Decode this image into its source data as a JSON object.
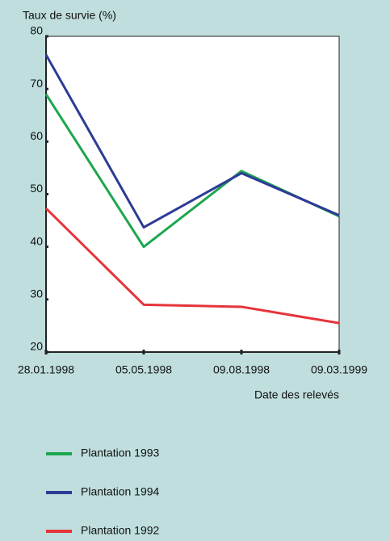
{
  "chart_data": {
    "type": "line",
    "title": "Taux de survie (%)",
    "x_label": "Date des relevés",
    "categories": [
      "28.01.1998",
      "05.05.1998",
      "09.08.1998",
      "09.03.1999"
    ],
    "series": [
      {
        "name": "Plantation 1993",
        "color": "#1ea64f",
        "values": [
          69,
          40,
          54.4,
          45.8
        ]
      },
      {
        "name": "Plantation 1994",
        "color": "#2d3b97",
        "values": [
          76.5,
          43.7,
          54,
          46
        ]
      },
      {
        "name": "Plantation 1992",
        "color": "#e5343a",
        "values": [
          47.3,
          29,
          28.6,
          25.5
        ]
      }
    ],
    "ylim": [
      20,
      80
    ],
    "yticks": [
      20,
      30,
      40,
      50,
      60,
      70,
      80
    ]
  }
}
